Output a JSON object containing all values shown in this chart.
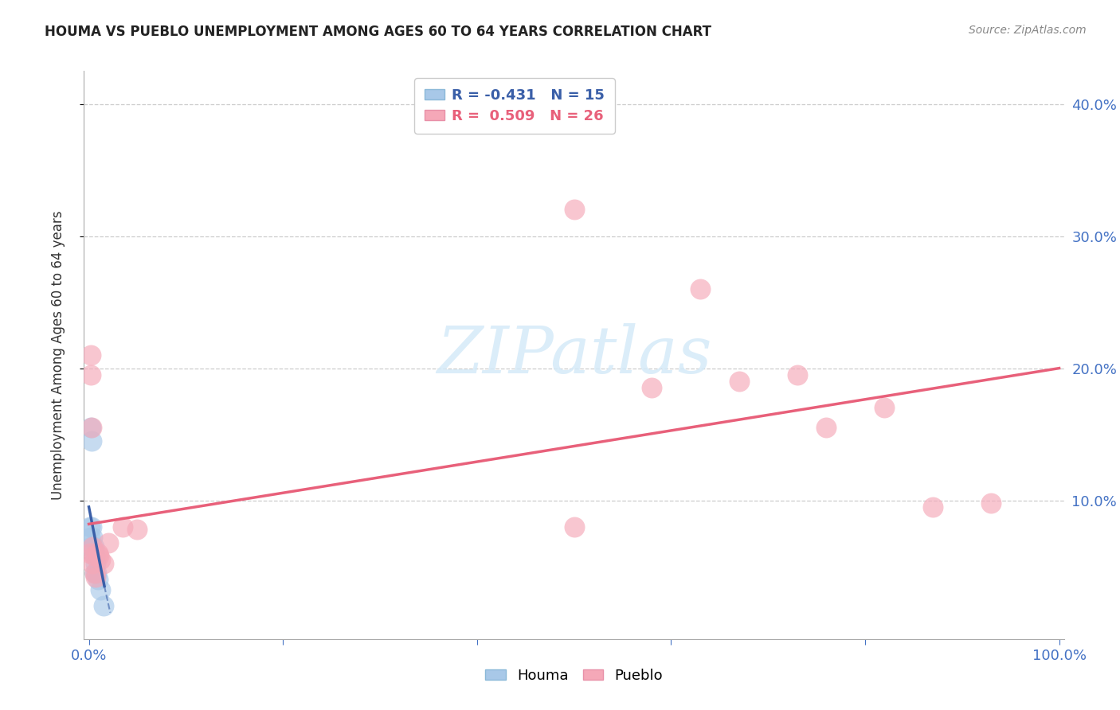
{
  "title": "HOUMA VS PUEBLO UNEMPLOYMENT AMONG AGES 60 TO 64 YEARS CORRELATION CHART",
  "source": "Source: ZipAtlas.com",
  "axis_color": "#4472c4",
  "ylabel": "Unemployment Among Ages 60 to 64 years",
  "background_color": "#ffffff",
  "houma_color": "#a8c8e8",
  "pueblo_color": "#f5a8b8",
  "houma_line_color": "#3a5fa8",
  "pueblo_line_color": "#e8607a",
  "grid_color": "#cccccc",
  "watermark_color": "#d5eaf8",
  "houma_R": -0.431,
  "houma_N": 15,
  "pueblo_R": 0.509,
  "pueblo_N": 26,
  "houma_x": [
    0.001,
    0.001,
    0.002,
    0.002,
    0.003,
    0.003,
    0.004,
    0.005,
    0.006,
    0.006,
    0.007,
    0.008,
    0.009,
    0.012,
    0.015
  ],
  "houma_y": [
    0.08,
    0.072,
    0.155,
    0.065,
    0.145,
    0.08,
    0.072,
    0.065,
    0.058,
    0.045,
    0.052,
    0.045,
    0.04,
    0.032,
    0.02
  ],
  "pueblo_x": [
    0.001,
    0.002,
    0.002,
    0.003,
    0.004,
    0.004,
    0.005,
    0.006,
    0.007,
    0.009,
    0.01,
    0.012,
    0.015,
    0.02,
    0.035,
    0.05,
    0.5,
    0.5,
    0.58,
    0.63,
    0.67,
    0.73,
    0.76,
    0.82,
    0.87,
    0.93
  ],
  "pueblo_y": [
    0.06,
    0.21,
    0.195,
    0.155,
    0.065,
    0.052,
    0.058,
    0.045,
    0.042,
    0.06,
    0.058,
    0.055,
    0.052,
    0.068,
    0.08,
    0.078,
    0.32,
    0.08,
    0.185,
    0.26,
    0.19,
    0.195,
    0.155,
    0.17,
    0.095,
    0.098
  ],
  "xlim": [
    0.0,
    1.0
  ],
  "ylim": [
    0.0,
    0.42
  ],
  "x_ticks": [
    0.0,
    1.0
  ],
  "x_tick_labels": [
    "0.0%",
    "100.0%"
  ],
  "y_ticks": [
    0.1,
    0.2,
    0.3,
    0.4
  ],
  "y_tick_labels": [
    "10.0%",
    "20.0%",
    "30.0%",
    "40.0%"
  ],
  "marker_size": 350,
  "marker_alpha": 0.65,
  "houma_line_x_end": 0.018,
  "pueblo_line_x_start": 0.0,
  "pueblo_line_x_end": 1.0,
  "pueblo_line_y_start": 0.082,
  "pueblo_line_y_end": 0.2
}
